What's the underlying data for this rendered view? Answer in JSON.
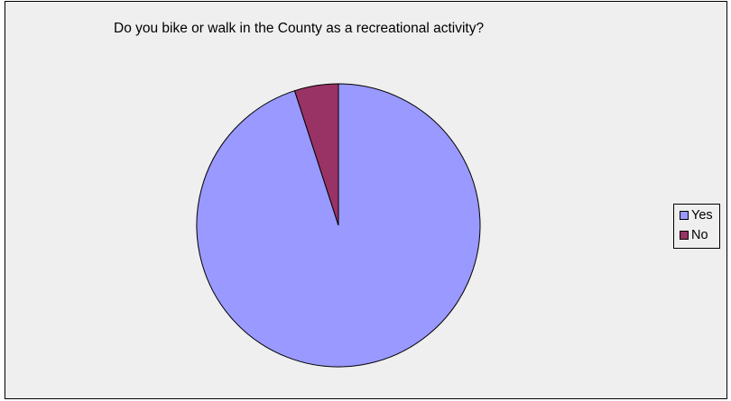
{
  "chart_data": {
    "type": "pie",
    "title": "Do you bike or walk in the County as a recreational activity?",
    "categories": [
      "Yes",
      "No"
    ],
    "values": [
      95,
      5
    ],
    "colors": [
      "#9999ff",
      "#993366"
    ],
    "legend": "right",
    "background": "#efefef"
  }
}
